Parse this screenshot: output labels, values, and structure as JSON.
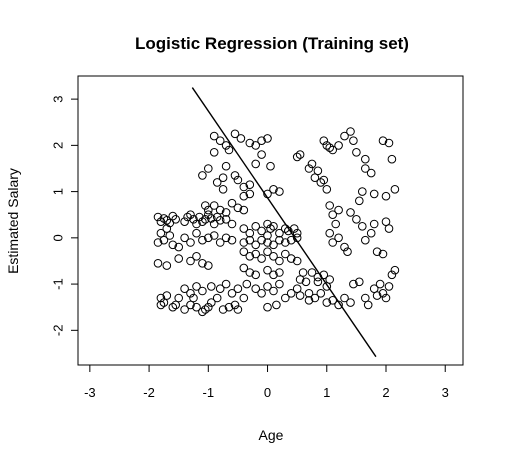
{
  "chart_data": {
    "type": "scatter",
    "title": "Logistic Regression (Training set)",
    "xlabel": "Age",
    "ylabel": "Estimated Salary",
    "xlim": [
      -3.2,
      3.3
    ],
    "ylim": [
      -2.75,
      3.5
    ],
    "xticks": [
      -3,
      -2,
      -1,
      0,
      1,
      2,
      3
    ],
    "yticks": [
      -2,
      -1,
      0,
      1,
      2,
      3
    ],
    "grid": false,
    "marker": "open-circle",
    "decision_boundary": {
      "x": [
        -1.27,
        1.83
      ],
      "y": [
        3.25,
        -2.57
      ]
    },
    "points": [
      [
        -1.85,
        0.45
      ],
      [
        -1.8,
        0.35
      ],
      [
        -1.75,
        0.42
      ],
      [
        -1.7,
        0.38
      ],
      [
        -1.65,
        0.32
      ],
      [
        -1.6,
        0.47
      ],
      [
        -1.55,
        0.4
      ],
      [
        -1.4,
        0.35
      ],
      [
        -1.35,
        0.45
      ],
      [
        -1.3,
        0.5
      ],
      [
        -1.25,
        0.4
      ],
      [
        -1.2,
        0.3
      ],
      [
        -1.15,
        0.45
      ],
      [
        -1.1,
        0.35
      ],
      [
        -1.05,
        0.4
      ],
      [
        -1.0,
        0.5
      ],
      [
        -0.95,
        0.42
      ],
      [
        -0.9,
        0.3
      ],
      [
        -0.85,
        0.45
      ],
      [
        -0.8,
        0.38
      ],
      [
        -0.7,
        0.4
      ],
      [
        -0.6,
        0.3
      ],
      [
        -1.85,
        -0.1
      ],
      [
        -1.8,
        0.1
      ],
      [
        -1.75,
        -0.05
      ],
      [
        -1.7,
        0.2
      ],
      [
        -1.65,
        0.05
      ],
      [
        -1.6,
        -0.15
      ],
      [
        -1.5,
        -0.2
      ],
      [
        -1.4,
        0.0
      ],
      [
        -1.3,
        -0.1
      ],
      [
        -1.2,
        0.1
      ],
      [
        -1.1,
        -0.05
      ],
      [
        -1.0,
        0.0
      ],
      [
        -0.9,
        0.05
      ],
      [
        -0.8,
        -0.1
      ],
      [
        -0.7,
        0.0
      ],
      [
        -0.6,
        -0.05
      ],
      [
        -1.85,
        -0.55
      ],
      [
        -1.7,
        -0.6
      ],
      [
        -1.5,
        -0.45
      ],
      [
        -1.3,
        -0.5
      ],
      [
        -1.2,
        -0.4
      ],
      [
        -1.1,
        -0.55
      ],
      [
        -1.0,
        -0.6
      ],
      [
        -1.8,
        -1.3
      ],
      [
        -1.75,
        -1.4
      ],
      [
        -1.7,
        -1.25
      ],
      [
        -1.6,
        -1.5
      ],
      [
        -1.55,
        -1.45
      ],
      [
        -1.5,
        -1.3
      ],
      [
        -1.4,
        -1.55
      ],
      [
        -1.3,
        -1.45
      ],
      [
        -1.25,
        -1.3
      ],
      [
        -1.2,
        -1.5
      ],
      [
        -1.1,
        -1.6
      ],
      [
        -1.05,
        -1.55
      ],
      [
        -1.0,
        -1.5
      ],
      [
        -0.95,
        -1.4
      ],
      [
        -0.85,
        -1.3
      ],
      [
        -0.75,
        -1.55
      ],
      [
        -0.65,
        -1.5
      ],
      [
        -0.55,
        -1.45
      ],
      [
        -0.5,
        -1.55
      ],
      [
        -1.8,
        -1.45
      ],
      [
        -1.4,
        -1.1
      ],
      [
        -1.3,
        -1.2
      ],
      [
        -1.2,
        -1.05
      ],
      [
        -1.1,
        -1.15
      ],
      [
        -0.95,
        -1.05
      ],
      [
        -0.8,
        -1.1
      ],
      [
        -0.7,
        -1.0
      ],
      [
        -0.6,
        -1.2
      ],
      [
        -0.5,
        -1.1
      ],
      [
        -0.4,
        -1.3
      ],
      [
        -1.05,
        0.7
      ],
      [
        -1.0,
        0.6
      ],
      [
        -0.9,
        0.7
      ],
      [
        -0.8,
        0.6
      ],
      [
        -0.7,
        0.55
      ],
      [
        -0.6,
        0.75
      ],
      [
        -0.5,
        0.65
      ],
      [
        -0.4,
        0.6
      ],
      [
        -1.1,
        1.35
      ],
      [
        -1.0,
        1.5
      ],
      [
        -0.85,
        1.2
      ],
      [
        -0.75,
        1.3
      ],
      [
        -0.7,
        1.55
      ],
      [
        -0.55,
        1.35
      ],
      [
        -0.5,
        1.25
      ],
      [
        -0.4,
        1.1
      ],
      [
        -0.3,
        1.15
      ],
      [
        -0.9,
        2.2
      ],
      [
        -0.8,
        2.1
      ],
      [
        -0.7,
        2.0
      ],
      [
        -0.55,
        2.25
      ],
      [
        -0.45,
        2.15
      ],
      [
        -0.3,
        2.05
      ],
      [
        -0.2,
        2.0
      ],
      [
        -0.1,
        2.1
      ],
      [
        0.0,
        2.15
      ],
      [
        -0.2,
        1.6
      ],
      [
        0.05,
        1.55
      ],
      [
        -0.1,
        1.8
      ],
      [
        -0.9,
        1.85
      ],
      [
        -0.65,
        1.9
      ],
      [
        -0.75,
        1.05
      ],
      [
        -0.4,
        0.9
      ],
      [
        -0.3,
        0.95
      ],
      [
        0.0,
        0.95
      ],
      [
        0.1,
        1.05
      ],
      [
        0.2,
        1.0
      ],
      [
        -0.4,
        0.2
      ],
      [
        -0.3,
        0.1
      ],
      [
        -0.2,
        0.25
      ],
      [
        -0.1,
        0.15
      ],
      [
        0.0,
        0.3
      ],
      [
        0.0,
        0.05
      ],
      [
        0.05,
        0.2
      ],
      [
        0.1,
        0.25
      ],
      [
        0.2,
        0.1
      ],
      [
        0.3,
        0.2
      ],
      [
        0.35,
        0.15
      ],
      [
        0.45,
        0.2
      ],
      [
        0.5,
        0.1
      ],
      [
        -0.4,
        -0.1
      ],
      [
        -0.3,
        -0.05
      ],
      [
        -0.2,
        -0.15
      ],
      [
        -0.1,
        -0.05
      ],
      [
        0.0,
        -0.1
      ],
      [
        0.1,
        -0.15
      ],
      [
        0.2,
        -0.05
      ],
      [
        0.3,
        -0.1
      ],
      [
        0.4,
        -0.05
      ],
      [
        0.5,
        0.0
      ],
      [
        -0.4,
        -0.3
      ],
      [
        -0.3,
        -0.4
      ],
      [
        -0.2,
        -0.35
      ],
      [
        -0.1,
        -0.45
      ],
      [
        0.0,
        -0.3
      ],
      [
        0.1,
        -0.4
      ],
      [
        0.2,
        -0.5
      ],
      [
        0.3,
        -0.35
      ],
      [
        0.4,
        -0.45
      ],
      [
        0.5,
        -0.5
      ],
      [
        -0.4,
        -0.65
      ],
      [
        -0.3,
        -0.75
      ],
      [
        -0.2,
        -0.8
      ],
      [
        0.0,
        -0.7
      ],
      [
        0.1,
        -0.8
      ],
      [
        0.2,
        -0.75
      ],
      [
        -0.35,
        -1.0
      ],
      [
        -0.2,
        -1.1
      ],
      [
        -0.1,
        -1.2
      ],
      [
        0.0,
        -1.05
      ],
      [
        0.1,
        -1.15
      ],
      [
        0.2,
        -1.0
      ],
      [
        0.3,
        -1.3
      ],
      [
        0.4,
        -1.2
      ],
      [
        0.5,
        -1.1
      ],
      [
        0.55,
        -1.25
      ],
      [
        0.0,
        -1.5
      ],
      [
        0.15,
        -1.45
      ],
      [
        0.5,
        1.75
      ],
      [
        0.55,
        1.8
      ],
      [
        0.7,
        1.5
      ],
      [
        0.75,
        1.6
      ],
      [
        0.8,
        1.3
      ],
      [
        0.85,
        1.45
      ],
      [
        0.9,
        1.2
      ],
      [
        0.95,
        1.25
      ],
      [
        1.0,
        1.05
      ],
      [
        1.05,
        0.7
      ],
      [
        0.95,
        2.1
      ],
      [
        1.0,
        2.0
      ],
      [
        1.05,
        1.95
      ],
      [
        1.1,
        1.9
      ],
      [
        1.2,
        2.0
      ],
      [
        1.3,
        2.2
      ],
      [
        1.4,
        2.3
      ],
      [
        1.45,
        2.1
      ],
      [
        1.5,
        1.85
      ],
      [
        1.95,
        2.1
      ],
      [
        2.05,
        2.05
      ],
      [
        1.65,
        1.7
      ],
      [
        1.1,
        0.5
      ],
      [
        1.2,
        0.6
      ],
      [
        1.15,
        0.3
      ],
      [
        1.05,
        0.1
      ],
      [
        1.1,
        -0.1
      ],
      [
        1.2,
        0.0
      ],
      [
        1.3,
        -0.2
      ],
      [
        1.35,
        -0.3
      ],
      [
        1.4,
        0.55
      ],
      [
        1.5,
        0.4
      ],
      [
        1.6,
        0.25
      ],
      [
        1.65,
        -0.05
      ],
      [
        1.75,
        0.1
      ],
      [
        1.65,
        1.5
      ],
      [
        1.75,
        1.4
      ],
      [
        1.8,
        0.95
      ],
      [
        1.6,
        1.0
      ],
      [
        1.55,
        0.8
      ],
      [
        1.8,
        0.3
      ],
      [
        1.85,
        -0.3
      ],
      [
        1.95,
        -0.35
      ],
      [
        2.0,
        0.35
      ],
      [
        2.05,
        0.2
      ],
      [
        2.1,
        1.7
      ],
      [
        2.15,
        1.05
      ],
      [
        2.0,
        0.9
      ],
      [
        0.75,
        -0.75
      ],
      [
        0.85,
        -0.85
      ],
      [
        0.95,
        -0.8
      ],
      [
        1.05,
        -0.9
      ],
      [
        1.0,
        -1.05
      ],
      [
        0.9,
        -1.2
      ],
      [
        0.8,
        -1.3
      ],
      [
        0.7,
        -1.35
      ],
      [
        1.0,
        -1.4
      ],
      [
        1.1,
        -1.35
      ],
      [
        1.2,
        -1.45
      ],
      [
        1.3,
        -1.3
      ],
      [
        1.4,
        -1.4
      ],
      [
        1.45,
        -1.0
      ],
      [
        1.55,
        -0.95
      ],
      [
        1.65,
        -1.3
      ],
      [
        1.8,
        -1.1
      ],
      [
        1.9,
        -1.0
      ],
      [
        2.0,
        -1.3
      ],
      [
        2.1,
        -0.8
      ],
      [
        2.15,
        -0.7
      ],
      [
        1.95,
        -1.2
      ],
      [
        2.05,
        -1.05
      ],
      [
        1.85,
        -1.25
      ],
      [
        1.7,
        -1.45
      ],
      [
        0.6,
        -0.75
      ],
      [
        0.55,
        -0.9
      ],
      [
        0.65,
        -0.95
      ],
      [
        0.7,
        -1.2
      ],
      [
        0.85,
        -0.95
      ]
    ]
  }
}
